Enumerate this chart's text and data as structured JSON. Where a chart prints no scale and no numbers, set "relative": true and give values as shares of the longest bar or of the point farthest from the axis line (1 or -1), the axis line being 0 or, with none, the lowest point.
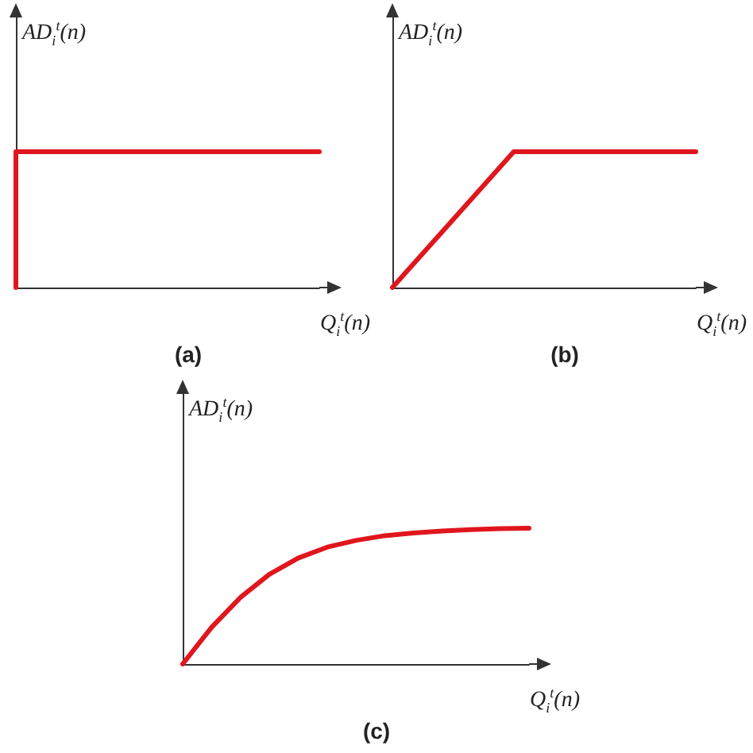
{
  "chart_data": [
    {
      "type": "step",
      "title": "(a)",
      "xlabel": "Q$_{i}$$^{t}$(n)",
      "ylabel": "AD$_{i}$$^{t}$(n)",
      "relative": true,
      "marker": "none",
      "color": "#e0161e",
      "categories": [
        null,
        null
      ],
      "values": [
        0,
        1
      ]
    },
    {
      "type": "line",
      "title": "(b)",
      "xlabel": "Q$_{i}$$^{t}$(n)",
      "ylabel": "AD$_{i}$$^{t}$(n)",
      "relative": true,
      "marker": "none",
      "color": "#e0161e",
      "categories": [
        null,
        null,
        null,
        null,
        null,
        null
      ],
      "values": [
        0,
        0.5,
        1,
        1,
        1,
        1
      ]
    },
    {
      "type": "line",
      "title": "(c)",
      "xlabel": "Q$_{i}$$^{t}$(n)",
      "ylabel": "AD$_{i}$$^{t}$(n)",
      "relative": true,
      "marker": "none",
      "color": "#e0161e",
      "categories": [
        null,
        null,
        null,
        null,
        null,
        null,
        null,
        null,
        null,
        null,
        null,
        null,
        null
      ],
      "values": [
        0,
        0.27,
        0.49,
        0.66,
        0.78,
        0.86,
        0.91,
        0.945,
        0.965,
        0.98,
        0.99,
        0.997,
        1
      ]
    }
  ]
}
